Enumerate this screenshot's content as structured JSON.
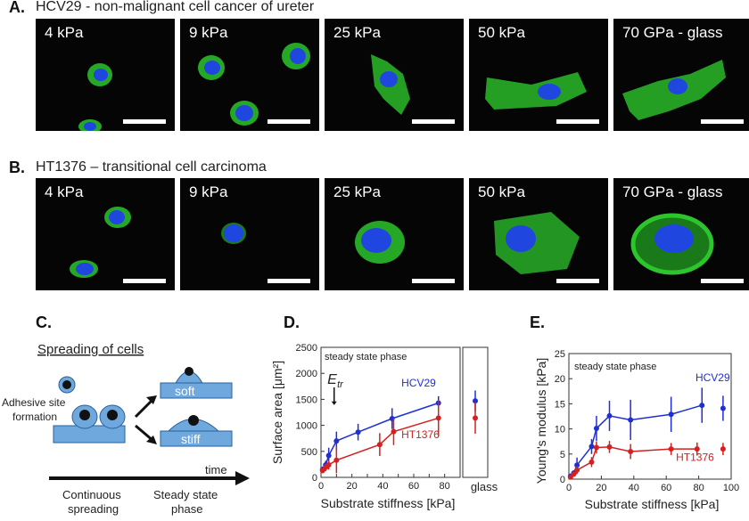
{
  "rowA": {
    "label": "A.",
    "title": "HCV29 - non-malignant cell cancer of ureter",
    "panels": [
      "4 kPa",
      "9 kPa",
      "25 kPa",
      "50 kPa",
      "70 GPa - glass"
    ]
  },
  "rowB": {
    "label": "B.",
    "title": "HT1376 – transitional cell carcinoma",
    "panels": [
      "4 kPa",
      "9 kPa",
      "25 kPa",
      "50 kPa",
      "70 GPa - glass"
    ]
  },
  "panelC": {
    "label": "C.",
    "title": "Spreading of cells",
    "adhesive": [
      "Adhesive site",
      "formation"
    ],
    "soft": "soft",
    "stiff": "stiff",
    "time": "time",
    "continuous": [
      "Continuous",
      "spreading"
    ],
    "steady": [
      "Steady state",
      "phase"
    ]
  },
  "panelD": {
    "label": "D.",
    "annotation": "steady state phase",
    "etr": "E",
    "etr_sub": "tr",
    "glass": "glass"
  },
  "panelE": {
    "label": "E.",
    "annotation": "steady state phase"
  },
  "colors": {
    "hcv29": "#1f2fd6",
    "ht1376": "#d42020",
    "cell_green": "#2cc62c",
    "nucleus": "#2046e0"
  },
  "chart_data": [
    {
      "type": "scatter",
      "title": "",
      "xlabel": "Substrate stiffness [kPa]",
      "ylabel": "Surface area [μm²]",
      "xlim": [
        0,
        90
      ],
      "ylim": [
        0,
        2500
      ],
      "xticks": [
        0,
        10,
        20,
        30,
        40,
        50,
        60,
        70,
        80
      ],
      "yticks": [
        0,
        500,
        1000,
        1500,
        2000,
        2500
      ],
      "series": [
        {
          "name": "HCV29",
          "x": [
            1,
            3,
            5,
            10,
            24,
            46,
            76
          ],
          "y": [
            150,
            240,
            420,
            700,
            870,
            1130,
            1430
          ],
          "err": [
            60,
            80,
            150,
            180,
            160,
            200,
            130
          ],
          "glass": 1470,
          "glass_err": 200
        },
        {
          "name": "HT1376",
          "x": [
            1,
            3,
            5,
            10,
            38,
            47,
            76
          ],
          "y": [
            130,
            190,
            240,
            330,
            630,
            880,
            1140
          ],
          "err": [
            50,
            70,
            90,
            250,
            220,
            260,
            350
          ],
          "glass": 1140,
          "glass_err": 300
        }
      ]
    },
    {
      "type": "scatter",
      "title": "",
      "xlabel": "Substrate stiffness [kPa]",
      "ylabel": "Young's modulus [kPa]",
      "xlim": [
        0,
        100
      ],
      "ylim": [
        0,
        25
      ],
      "xticks": [
        0,
        20,
        40,
        60,
        80,
        100
      ],
      "yticks": [
        0,
        5,
        10,
        15,
        20,
        25
      ],
      "series": [
        {
          "name": "HCV29",
          "x": [
            1,
            3,
            5,
            14,
            17,
            25,
            38,
            63,
            82,
            95
          ],
          "y": [
            0.6,
            1.2,
            2.8,
            6.5,
            10.1,
            12.6,
            11.8,
            12.9,
            14.7,
            14.1
          ],
          "err": [
            0.3,
            0.6,
            1.5,
            1.5,
            2.5,
            3.0,
            4.0,
            3.5,
            3.5,
            2.5
          ]
        },
        {
          "name": "HT1376",
          "x": [
            1,
            3,
            5,
            14,
            17,
            25,
            38,
            63,
            79,
            95
          ],
          "y": [
            0.4,
            1.0,
            1.8,
            3.4,
            6.3,
            6.4,
            5.5,
            6.0,
            6.0,
            6.0
          ],
          "err": [
            0.2,
            0.4,
            0.8,
            1.0,
            1.2,
            1.2,
            1.5,
            1.2,
            1.3,
            1.2
          ]
        }
      ]
    }
  ]
}
